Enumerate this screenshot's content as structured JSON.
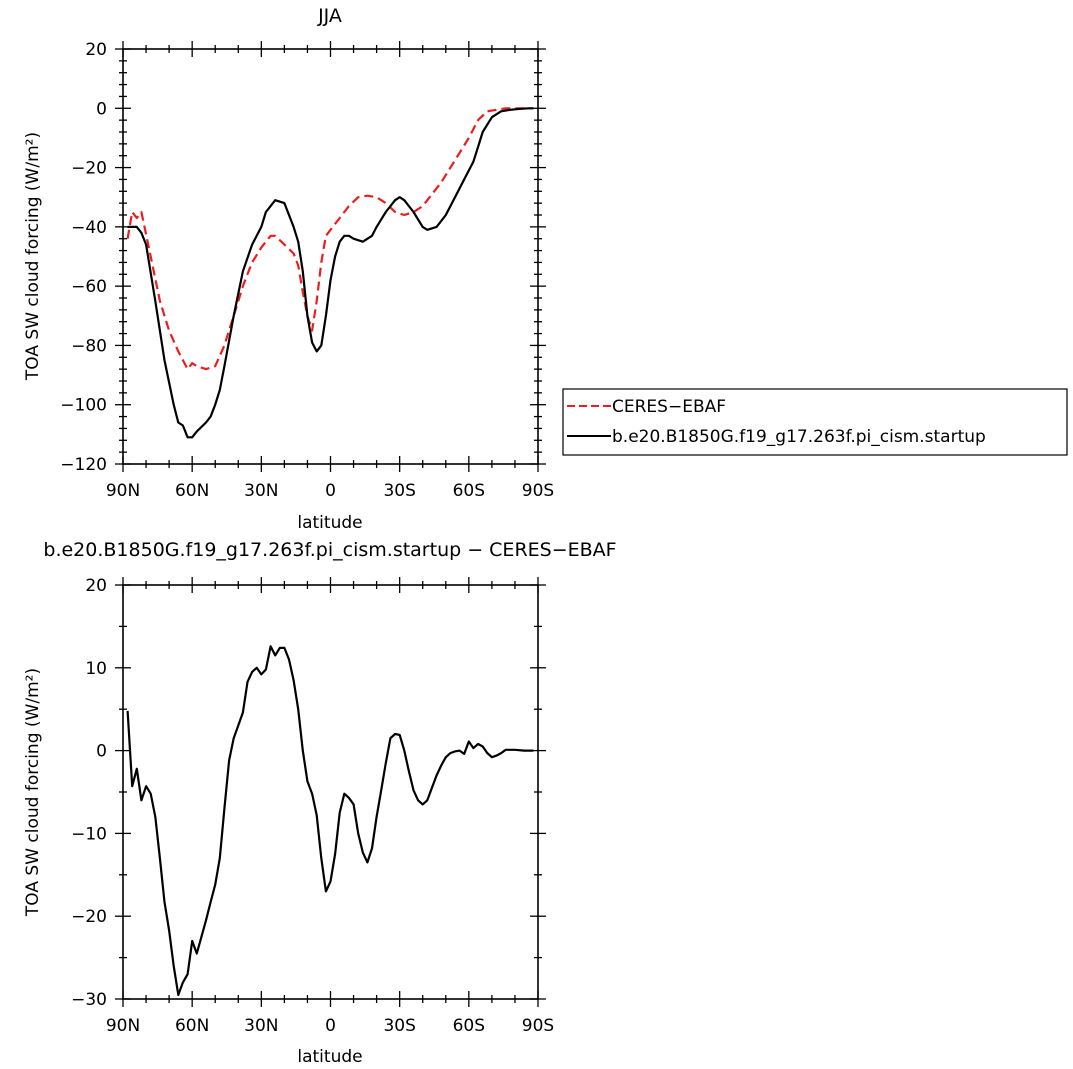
{
  "chart_data": [
    {
      "type": "line",
      "title": "JJA",
      "xlabel": "latitude",
      "ylabel": "TOA SW cloud forcing (W/m²)",
      "xlim": [
        90,
        -90
      ],
      "ylim": [
        -120,
        20
      ],
      "x_ticks": [
        90,
        60,
        30,
        0,
        -30,
        -60,
        -90
      ],
      "x_tick_labels": [
        "90N",
        "60N",
        "30N",
        "0",
        "30S",
        "60S",
        "90S"
      ],
      "y_ticks": [
        20,
        0,
        -20,
        -40,
        -60,
        -80,
        -100,
        -120
      ],
      "y_tick_labels": [
        "20",
        "0",
        "−20",
        "−40",
        "−60",
        "−80",
        "−100",
        "−120"
      ],
      "legend_position": "right",
      "grid": false,
      "series": [
        {
          "name": "CERES−EBAF",
          "color": "#ee1c1c",
          "style": "dashed",
          "x": [
            88,
            86,
            84,
            82,
            78,
            74,
            70,
            66,
            62,
            60,
            58,
            54,
            50,
            46,
            42,
            38,
            34,
            30,
            28,
            26,
            24,
            20,
            16,
            14,
            12,
            10,
            8,
            6,
            4,
            2,
            0,
            -4,
            -8,
            -12,
            -16,
            -20,
            -24,
            -28,
            -32,
            -36,
            -40,
            -44,
            -48,
            -52,
            -56,
            -60,
            -64,
            -68,
            -72,
            -76,
            -80,
            -86,
            -88
          ],
          "y": [
            -44,
            -35,
            -37,
            -35,
            -50,
            -65,
            -75,
            -82,
            -88,
            -86,
            -87,
            -88,
            -87,
            -80,
            -70,
            -60,
            -52,
            -47,
            -45,
            -43,
            -43,
            -46,
            -49,
            -53,
            -62,
            -70,
            -75,
            -65,
            -52,
            -43,
            -41,
            -37,
            -33,
            -30,
            -29.5,
            -30,
            -32,
            -35,
            -36,
            -35,
            -33,
            -29,
            -25,
            -20,
            -15,
            -10,
            -4,
            -1,
            -0.5,
            0,
            0,
            0,
            0
          ]
        },
        {
          "name": "b.e20.B1850G.f19_g17.263f.pi_cism.startup",
          "color": "#000000",
          "style": "solid",
          "x": [
            88,
            84,
            82,
            80,
            76,
            72,
            68,
            66,
            64,
            62,
            60,
            58,
            54,
            52,
            50,
            48,
            46,
            42,
            38,
            34,
            32,
            30,
            28,
            26,
            24,
            20,
            18,
            16,
            14,
            12,
            10,
            8,
            6,
            4,
            2,
            0,
            -2,
            -4,
            -6,
            -8,
            -10,
            -14,
            -18,
            -20,
            -24,
            -28,
            -30,
            -32,
            -36,
            -40,
            -42,
            -46,
            -50,
            -54,
            -58,
            -62,
            -64,
            -66,
            -70,
            -74,
            -78,
            -82,
            -86,
            -88
          ],
          "y": [
            -40,
            -40,
            -42,
            -46,
            -65,
            -85,
            -100,
            -106,
            -107,
            -111,
            -111,
            -109,
            -106,
            -104,
            -100,
            -95,
            -87,
            -70,
            -55,
            -46,
            -43,
            -40,
            -35,
            -33,
            -31,
            -32,
            -36,
            -40,
            -45,
            -55,
            -70,
            -79,
            -82,
            -80,
            -70,
            -58,
            -50,
            -45,
            -43,
            -43,
            -44,
            -45,
            -43,
            -40,
            -35,
            -31,
            -30,
            -31,
            -35,
            -40,
            -41,
            -40,
            -36,
            -30,
            -24,
            -18,
            -13,
            -8,
            -3,
            -1,
            -0.5,
            -0.2,
            0,
            0
          ]
        }
      ]
    },
    {
      "type": "line",
      "title": "b.e20.B1850G.f19_g17.263f.pi_cism.startup − CERES−EBAF",
      "xlabel": "latitude",
      "ylabel": "TOA SW cloud forcing (W/m²)",
      "xlim": [
        90,
        -90
      ],
      "ylim": [
        -30,
        20
      ],
      "x_ticks": [
        90,
        60,
        30,
        0,
        -30,
        -60,
        -90
      ],
      "x_tick_labels": [
        "90N",
        "60N",
        "30N",
        "0",
        "30S",
        "60S",
        "90S"
      ],
      "y_ticks": [
        20,
        10,
        0,
        -10,
        -20,
        -30
      ],
      "y_tick_labels": [
        "20",
        "10",
        "0",
        "−10",
        "−20",
        "−30"
      ],
      "grid": false,
      "series": [
        {
          "color": "#000000",
          "style": "solid",
          "x": [
            88,
            86,
            84,
            82,
            80,
            78,
            76,
            74,
            72,
            70,
            68,
            66,
            64,
            62,
            60,
            58,
            54,
            52,
            50,
            48,
            46,
            44,
            42,
            38,
            36,
            34,
            32,
            30,
            28,
            26,
            24,
            22,
            20,
            18,
            16,
            14,
            12,
            10,
            8,
            6,
            4,
            2,
            0,
            -2,
            -4,
            -6,
            -8,
            -10,
            -12,
            -14,
            -16,
            -18,
            -20,
            -22,
            -24,
            -26,
            -28,
            -30,
            -32,
            -34,
            -36,
            -38,
            -40,
            -42,
            -44,
            -46,
            -48,
            -50,
            -52,
            -54,
            -56,
            -58,
            -60,
            -62,
            -64,
            -66,
            -68,
            -70,
            -72,
            -74,
            -76,
            -78,
            -80,
            -84,
            -88
          ],
          "y": [
            4.8,
            -4.3,
            -2.2,
            -6,
            -4.3,
            -5.2,
            -8,
            -13,
            -18.3,
            -21.7,
            -26,
            -29.5,
            -28,
            -27,
            -23,
            -24.5,
            -20.5,
            -18.3,
            -16.2,
            -13,
            -7,
            -1.2,
            1.5,
            4.6,
            8.3,
            9.5,
            10,
            9.2,
            9.8,
            12.6,
            11.5,
            12.4,
            12.4,
            11,
            8.5,
            5,
            0,
            -3.7,
            -5.2,
            -7.8,
            -13,
            -17,
            -15.8,
            -12.5,
            -7.5,
            -5.2,
            -5.7,
            -6.5,
            -10,
            -12.3,
            -13.5,
            -11.8,
            -8,
            -4.8,
            -1.5,
            1.5,
            2,
            1.9,
            0,
            -2.5,
            -4.8,
            -6,
            -6.5,
            -6,
            -4.5,
            -3,
            -1.8,
            -0.8,
            -0.3,
            -0.1,
            0,
            -0.4,
            1.1,
            0.3,
            0.8,
            0.5,
            -0.3,
            -0.8,
            -0.6,
            -0.3,
            0.1,
            0.1,
            0.1,
            0,
            0
          ]
        }
      ]
    }
  ]
}
